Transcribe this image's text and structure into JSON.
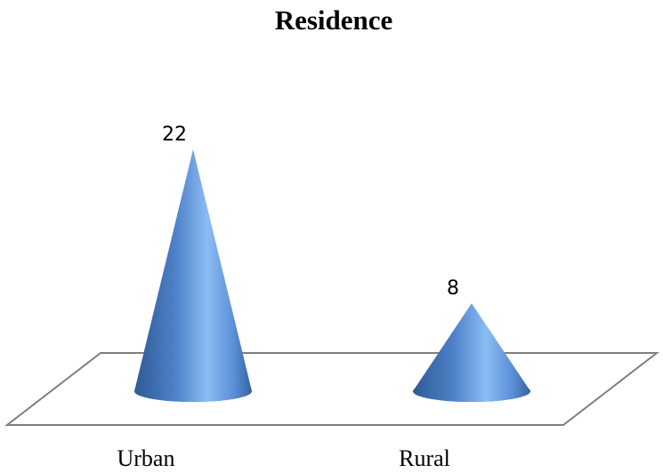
{
  "chart_data": {
    "type": "cone",
    "title": "Residence",
    "categories": [
      "Urban",
      "Rural"
    ],
    "values": [
      22,
      8
    ],
    "color": "#4f81bd"
  }
}
